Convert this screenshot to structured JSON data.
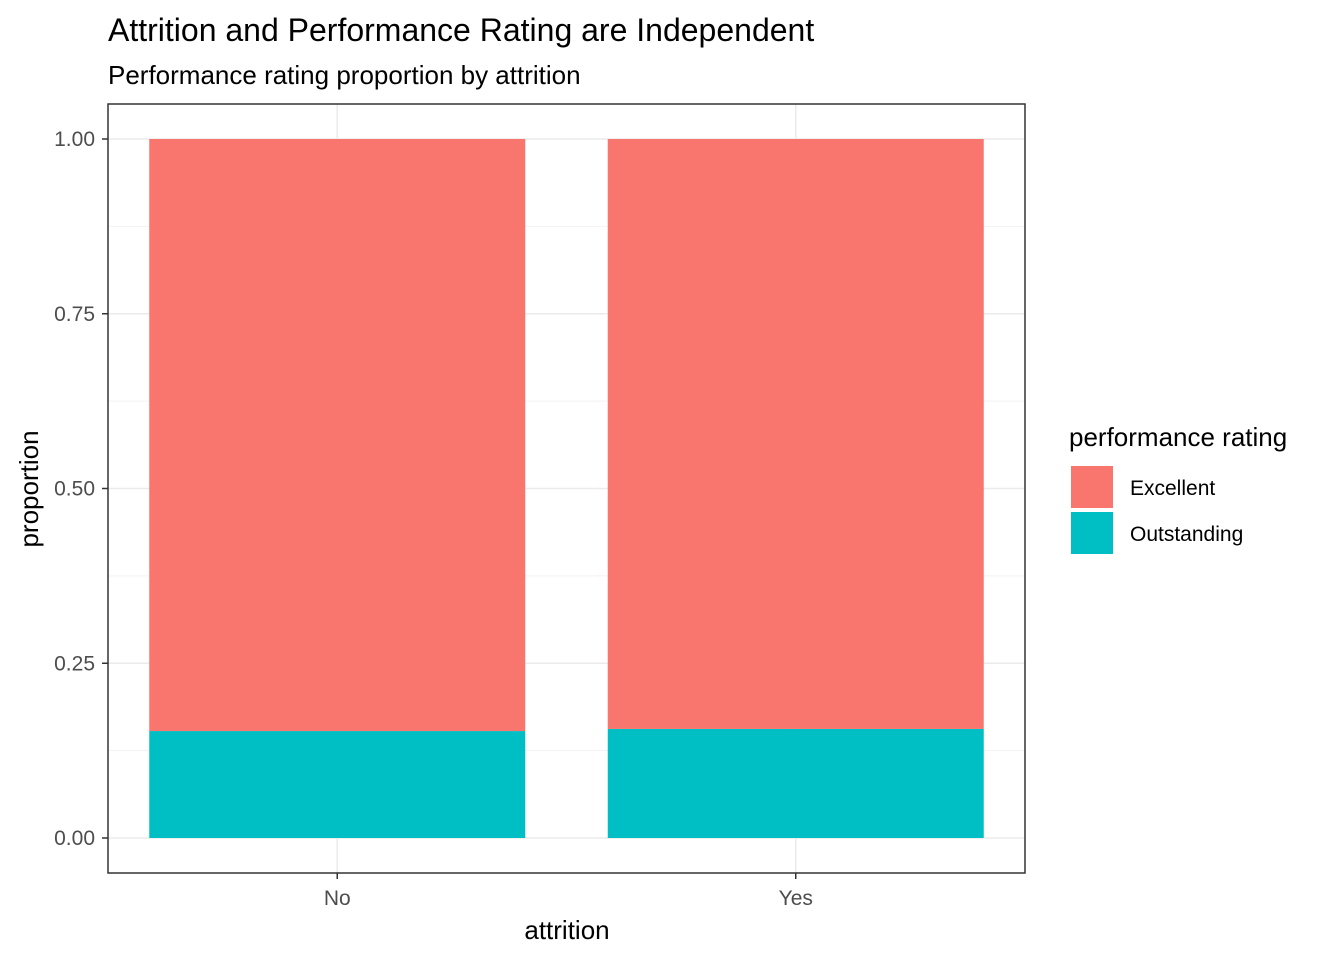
{
  "chart_data": {
    "type": "bar",
    "stacked": true,
    "title": "Attrition and Performance Rating are Independent",
    "subtitle": "Performance rating proportion by attrition",
    "xlabel": "attrition",
    "ylabel": "proportion",
    "categories": [
      "No",
      "Yes"
    ],
    "ylim": [
      0,
      1
    ],
    "yticks": [
      "0.00",
      "0.25",
      "0.50",
      "0.75",
      "1.00"
    ],
    "series": [
      {
        "name": "Outstanding",
        "values": [
          0.153,
          0.156
        ],
        "color": "#00BFC4"
      },
      {
        "name": "Excellent",
        "values": [
          0.847,
          0.844
        ],
        "color": "#F8766D"
      }
    ],
    "legend": {
      "title": "performance rating",
      "position": "right",
      "entries": [
        "Excellent",
        "Outstanding"
      ]
    },
    "grid": true
  }
}
